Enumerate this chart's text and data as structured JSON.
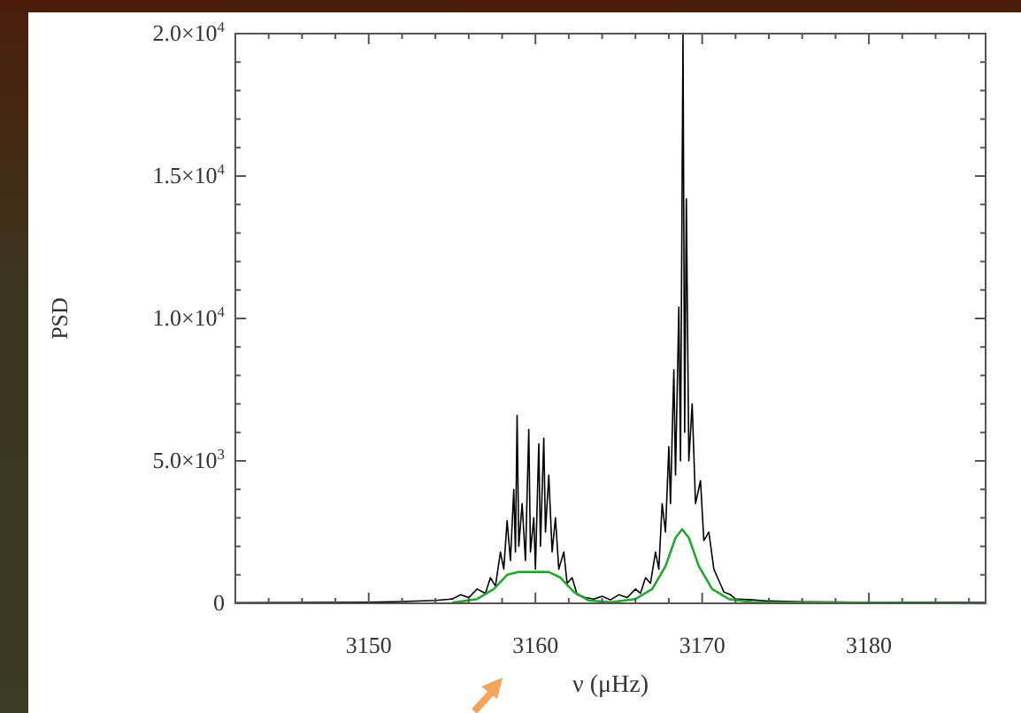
{
  "chart_data": {
    "type": "line",
    "xlabel": "ν (μHz)",
    "ylabel": "PSD",
    "xlim": [
      3142,
      3187
    ],
    "ylim": [
      0,
      20000
    ],
    "xticks": [
      3150,
      3160,
      3170,
      3180,
      {
        "value": 3144,
        "label": null
      },
      {
        "value": 3146,
        "label": null
      },
      {
        "value": 3148,
        "label": null
      },
      {
        "value": 3152,
        "label": null
      },
      {
        "value": 3154,
        "label": null
      },
      {
        "value": 3156,
        "label": null
      },
      {
        "value": 3158,
        "label": null
      },
      {
        "value": 3162,
        "label": null
      },
      {
        "value": 3164,
        "label": null
      },
      {
        "value": 3166,
        "label": null
      },
      {
        "value": 3168,
        "label": null
      },
      {
        "value": 3172,
        "label": null
      },
      {
        "value": 3174,
        "label": null
      },
      {
        "value": 3176,
        "label": null
      },
      {
        "value": 3178,
        "label": null
      },
      {
        "value": 3182,
        "label": null
      },
      {
        "value": 3184,
        "label": null
      },
      {
        "value": 3186,
        "label": null
      }
    ],
    "yticks": [
      0,
      {
        "value": 5000,
        "label": "5.0×10$^{3}$"
      },
      {
        "value": 10000,
        "label": "1.0×10$^{4}$"
      },
      {
        "value": 15000,
        "label": "1.5×10$^{4}$"
      },
      {
        "value": 20000,
        "label": "2.0×10$^{4}$"
      },
      {
        "value": 1000,
        "label": null
      },
      {
        "value": 2000,
        "label": null
      },
      {
        "value": 3000,
        "label": null
      },
      {
        "value": 4000,
        "label": null
      },
      {
        "value": 6000,
        "label": null
      },
      {
        "value": 7000,
        "label": null
      },
      {
        "value": 8000,
        "label": null
      },
      {
        "value": 9000,
        "label": null
      },
      {
        "value": 11000,
        "label": null
      },
      {
        "value": 12000,
        "label": null
      },
      {
        "value": 13000,
        "label": null
      },
      {
        "value": 14000,
        "label": null
      },
      {
        "value": 16000,
        "label": null
      },
      {
        "value": 17000,
        "label": null
      },
      {
        "value": 18000,
        "label": null
      },
      {
        "value": 19000,
        "label": null
      }
    ],
    "grid": false,
    "marker": "none",
    "line_style": "solid",
    "series": [
      {
        "color": "#000000",
        "x": [
          3142,
          3146,
          3150,
          3152,
          3154,
          3155,
          3155.5,
          3156,
          3156.5,
          3157,
          3157.3,
          3157.6,
          3157.9,
          3158.1,
          3158.3,
          3158.5,
          3158.7,
          3158.8,
          3158.9,
          3159.0,
          3159.2,
          3159.4,
          3159.6,
          3159.7,
          3159.9,
          3160.0,
          3160.2,
          3160.3,
          3160.5,
          3160.6,
          3160.8,
          3161.0,
          3161.2,
          3161.4,
          3161.7,
          3161.9,
          3162.2,
          3162.5,
          3163,
          3163.5,
          3164,
          3164.5,
          3165,
          3165.5,
          3166,
          3166.3,
          3166.6,
          3166.9,
          3167.2,
          3167.4,
          3167.6,
          3167.8,
          3168.0,
          3168.1,
          3168.3,
          3168.4,
          3168.6,
          3168.7,
          3168.85,
          3168.95,
          3169.05,
          3169.2,
          3169.4,
          3169.6,
          3169.9,
          3170.1,
          3170.4,
          3170.7,
          3171,
          3171.3,
          3171.7,
          3172,
          3173,
          3174,
          3176,
          3180,
          3187
        ],
        "values": [
          20,
          30,
          40,
          60,
          100,
          150,
          300,
          200,
          500,
          350,
          900,
          600,
          1800,
          1200,
          2900,
          1500,
          4000,
          1800,
          6600,
          2000,
          3500,
          1500,
          6100,
          1800,
          3000,
          1200,
          5600,
          2000,
          5800,
          2500,
          4500,
          1800,
          3000,
          1200,
          1800,
          700,
          900,
          300,
          200,
          150,
          250,
          120,
          300,
          200,
          500,
          350,
          900,
          700,
          1800,
          1200,
          3500,
          2500,
          5500,
          3500,
          8200,
          4500,
          10400,
          5000,
          20000,
          6000,
          14200,
          5000,
          7000,
          3500,
          4300,
          2200,
          2500,
          1200,
          800,
          400,
          300,
          150,
          120,
          80,
          50,
          40,
          30
        ]
      },
      {
        "color": "#22a82a",
        "x": [
          3155,
          3156.5,
          3157.5,
          3158.3,
          3159,
          3160.8,
          3161.5,
          3162.3,
          3163.2,
          3164.5,
          3166,
          3167,
          3167.8,
          3168.4,
          3168.8,
          3169.2,
          3169.8,
          3170.6,
          3171.6,
          3173,
          3187
        ],
        "values": [
          20,
          150,
          500,
          1000,
          1100,
          1100,
          900,
          400,
          100,
          40,
          150,
          500,
          1300,
          2300,
          2600,
          2300,
          1300,
          500,
          150,
          40,
          0
        ]
      }
    ]
  }
}
